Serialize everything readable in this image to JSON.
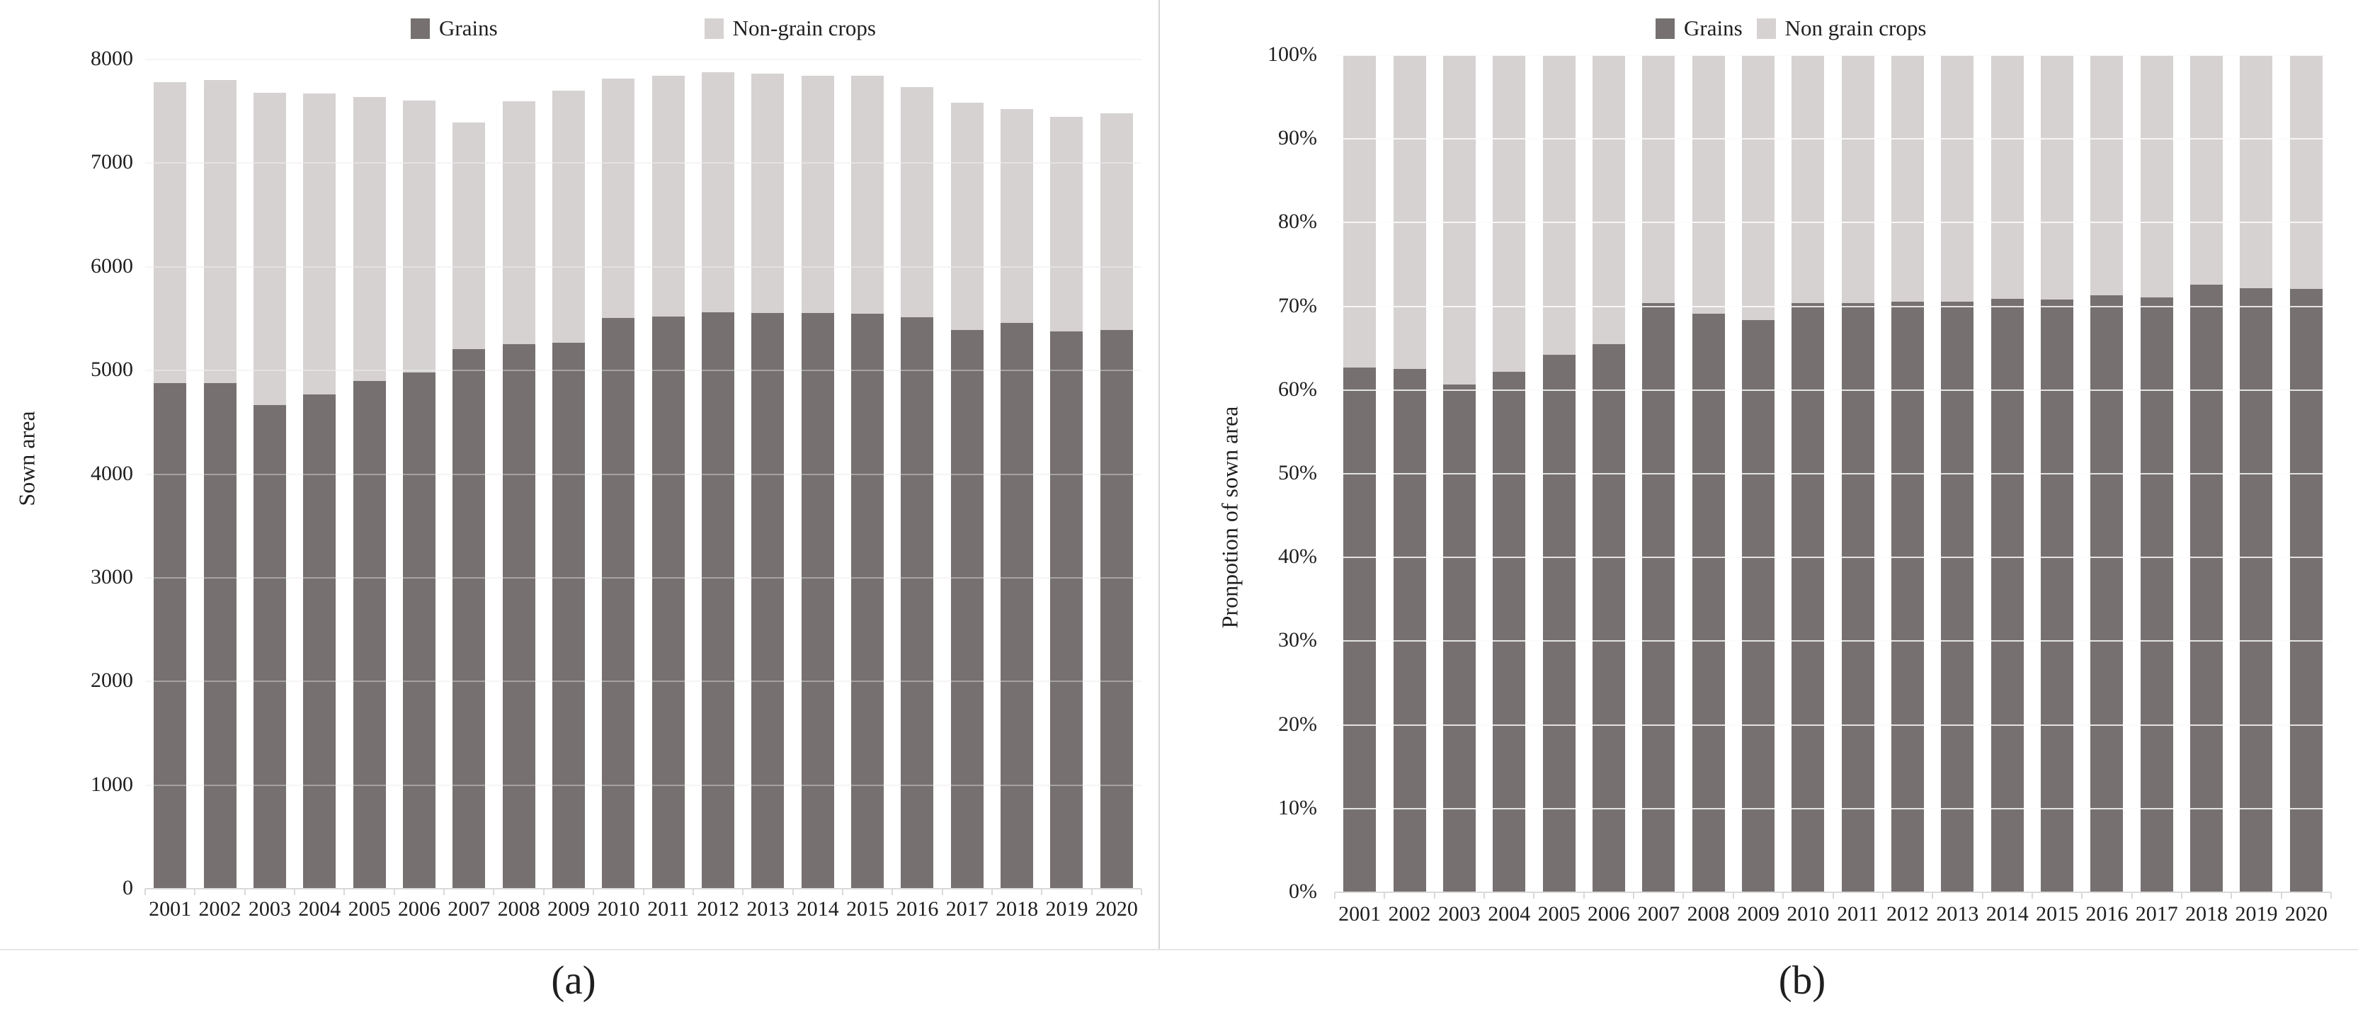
{
  "figure": {
    "panel_a": {
      "caption": "(a)",
      "ylabel": "Sown area"
    },
    "panel_b": {
      "caption": "(b)",
      "ylabel": "Pronpotion of sown area"
    },
    "colors": {
      "grains": "#767070",
      "non_grain": "#d5d2d1",
      "gridline": "#f1efee",
      "axis": "#d9d9d9",
      "divider": "#d8d6d5",
      "bottom_border": "#e7e5e4",
      "text": "#1f1f1f"
    }
  },
  "chart_data": [
    {
      "type": "bar",
      "stacked": true,
      "panel": "a",
      "title": "",
      "ylabel": "Sown area",
      "xlabel": "",
      "ylim": [
        0,
        8000
      ],
      "ytick_step": 1000,
      "ytick_suffix": "",
      "grid": true,
      "legend_position": "top",
      "categories": [
        "2001",
        "2002",
        "2003",
        "2004",
        "2005",
        "2006",
        "2007",
        "2008",
        "2009",
        "2010",
        "2011",
        "2012",
        "2013",
        "2014",
        "2015",
        "2016",
        "2017",
        "2018",
        "2019",
        "2020"
      ],
      "series": [
        {
          "name": "Grains",
          "color": "#767070",
          "values": [
            4880,
            4875,
            4665,
            4770,
            4900,
            4980,
            5205,
            5255,
            5265,
            5505,
            5520,
            5560,
            5555,
            5555,
            5550,
            5515,
            5390,
            5460,
            5375,
            5390
          ]
        },
        {
          "name": "Non-grain crops",
          "color": "#d5d2d1",
          "values": [
            2900,
            2925,
            3015,
            2900,
            2735,
            2625,
            2185,
            2345,
            2435,
            2310,
            2325,
            2315,
            2310,
            2285,
            2290,
            2220,
            2195,
            2060,
            2070,
            2090
          ]
        }
      ],
      "totals": [
        7780,
        7800,
        7680,
        7670,
        7635,
        7605,
        7390,
        7600,
        7700,
        7815,
        7845,
        7875,
        7865,
        7840,
        7840,
        7735,
        7585,
        7520,
        7445,
        7480
      ]
    },
    {
      "type": "bar",
      "stacked": true,
      "panel": "b",
      "title": "",
      "ylabel": "Pronpotion of sown area",
      "xlabel": "",
      "unit": "%",
      "ylim": [
        0,
        100
      ],
      "ytick_step": 10,
      "ytick_suffix": "%",
      "grid": true,
      "legend_position": "top",
      "categories": [
        "2001",
        "2002",
        "2003",
        "2004",
        "2005",
        "2006",
        "2007",
        "2008",
        "2009",
        "2010",
        "2011",
        "2012",
        "2013",
        "2014",
        "2015",
        "2016",
        "2017",
        "2018",
        "2019",
        "2020"
      ],
      "series": [
        {
          "name": "Grains",
          "color": "#767070",
          "values": [
            62.7,
            62.5,
            60.7,
            62.2,
            64.2,
            65.5,
            70.4,
            69.1,
            68.4,
            70.4,
            70.4,
            70.6,
            70.6,
            70.9,
            70.8,
            71.3,
            71.1,
            72.6,
            72.2,
            72.1
          ]
        },
        {
          "name": "Non grain crops",
          "color": "#d5d2d1",
          "values": [
            37.3,
            37.5,
            39.3,
            37.8,
            35.8,
            34.5,
            29.6,
            30.9,
            31.6,
            29.6,
            29.6,
            29.4,
            29.4,
            29.1,
            29.2,
            28.7,
            28.9,
            27.4,
            27.8,
            27.9
          ]
        }
      ]
    }
  ]
}
